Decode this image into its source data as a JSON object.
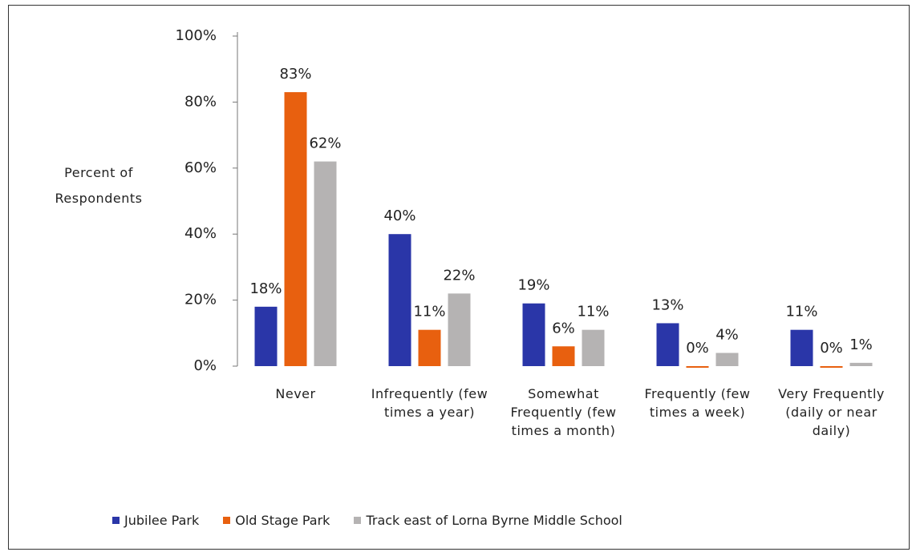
{
  "chart_data": {
    "type": "bar",
    "y_label": "Percent of Respondents",
    "categories": [
      "Never",
      "Infrequently (few times a year)",
      "Somewhat Frequently (few times a month)",
      "Frequently (few times a week)",
      "Very Frequently (daily or near daily)"
    ],
    "series": [
      {
        "name": "Jubilee Park",
        "color": "#2a36a8",
        "values": [
          18,
          40,
          19,
          13,
          11
        ],
        "value_labels": [
          "18%",
          "40%",
          "19%",
          "13%",
          "11%"
        ]
      },
      {
        "name": "Old Stage Park",
        "color": "#e8600f",
        "values": [
          83,
          11,
          6,
          0,
          0
        ],
        "value_labels": [
          "83%",
          "11%",
          "6%",
          "0%",
          "0%"
        ]
      },
      {
        "name": "Track east of Lorna Byrne Middle School",
        "color": "#b5b3b3",
        "values": [
          62,
          22,
          11,
          4,
          1
        ],
        "value_labels": [
          "62%",
          "22%",
          "11%",
          "4%",
          "1%"
        ]
      }
    ],
    "ylim": [
      0,
      100
    ],
    "yticks": [
      {
        "value": 0,
        "label": "0%"
      },
      {
        "value": 20,
        "label": "20%"
      },
      {
        "value": 40,
        "label": "40%"
      },
      {
        "value": 60,
        "label": "60%"
      },
      {
        "value": 80,
        "label": "80%"
      },
      {
        "value": 100,
        "label": "100%"
      }
    ],
    "legend": "bottom"
  }
}
